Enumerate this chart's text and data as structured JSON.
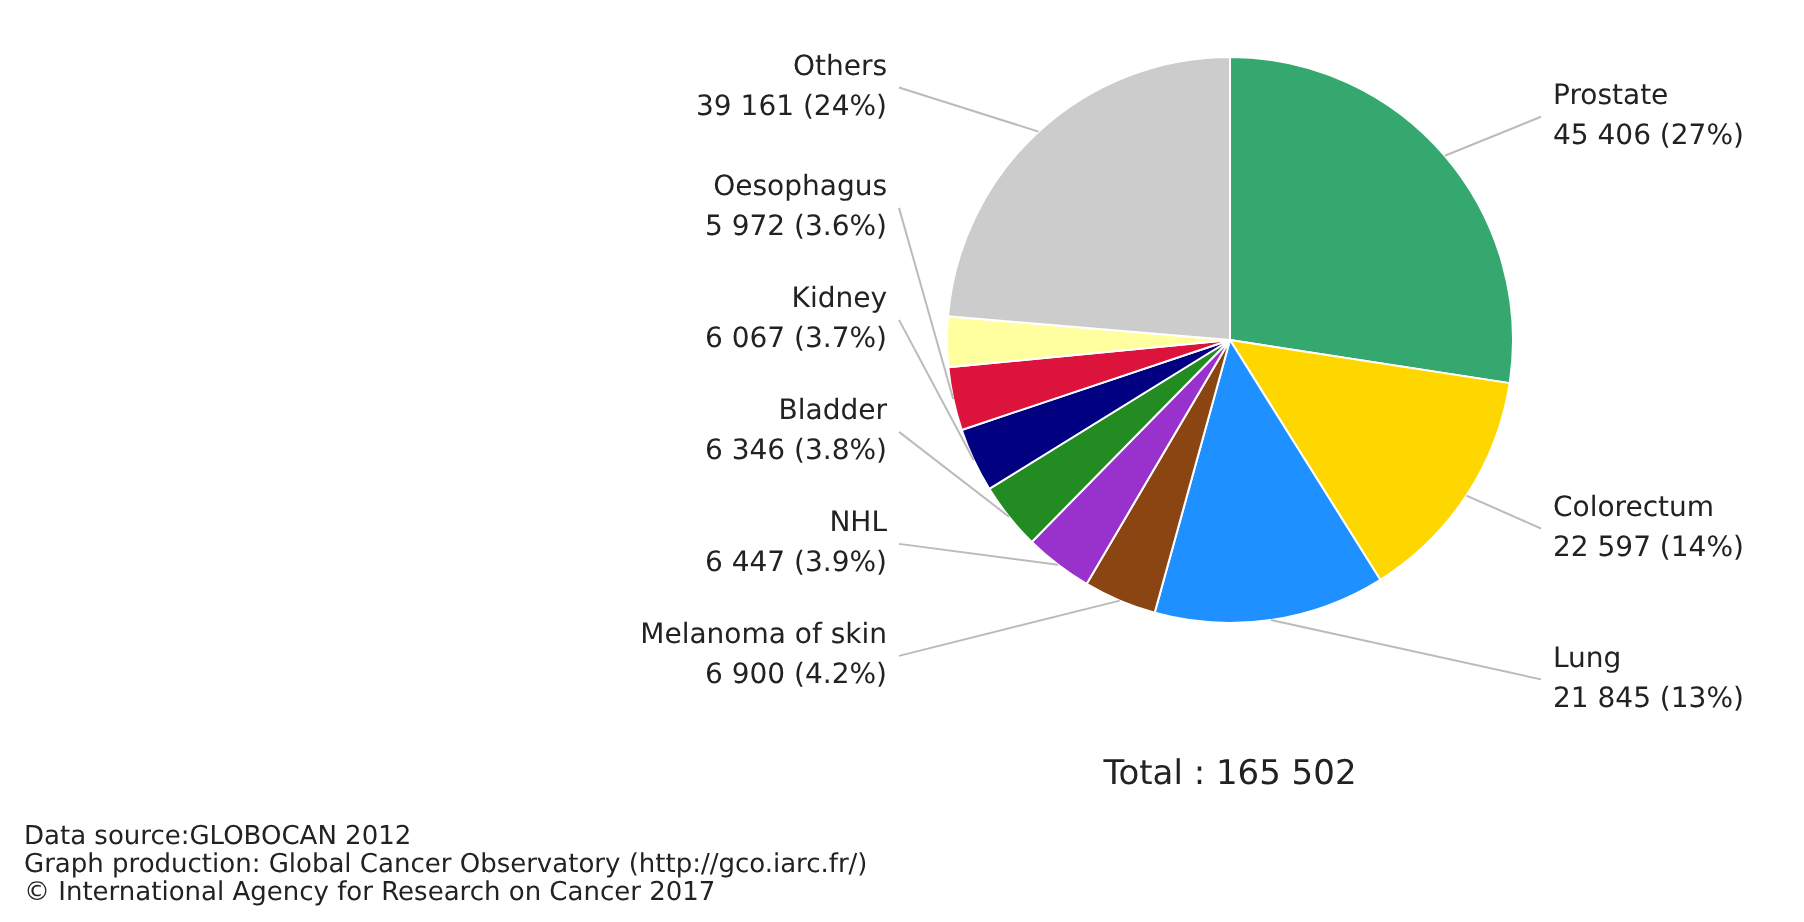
{
  "chart_data": {
    "type": "pie",
    "subtitle": "Total : 165 502",
    "categories": [
      "Prostate",
      "Colorectum",
      "Lung",
      "Melanoma of skin",
      "NHL",
      "Bladder",
      "Kidney",
      "Oesophagus",
      null,
      "Others"
    ],
    "values": [
      45406,
      22597,
      21845,
      6900,
      6447,
      6346,
      6067,
      5972,
      4761,
      39161
    ],
    "value_labels": [
      "45 406 (27%)",
      "22 597 (14%)",
      "21 845 (13%)",
      "6 900 (4.2%)",
      "6 447 (3.9%)",
      "6 346 (3.8%)",
      "6 067 (3.7%)",
      "5 972 (3.6%)",
      null,
      "39 161 (24%)"
    ],
    "colors": [
      "#35a86f",
      "#ffd700",
      "#1e90ff",
      "#8b4513",
      "#9932cc",
      "#228b22",
      "#000080",
      "#dc143c",
      "#ffffa0",
      "#cccccc"
    ],
    "annotations": [
      "Data source:GLOBOCAN 2012",
      "Graph production: Global Cancer Observatory (http://gco.iarc.fr/)",
      "© International Agency for Research on Cancer 2017"
    ],
    "legend": false
  }
}
